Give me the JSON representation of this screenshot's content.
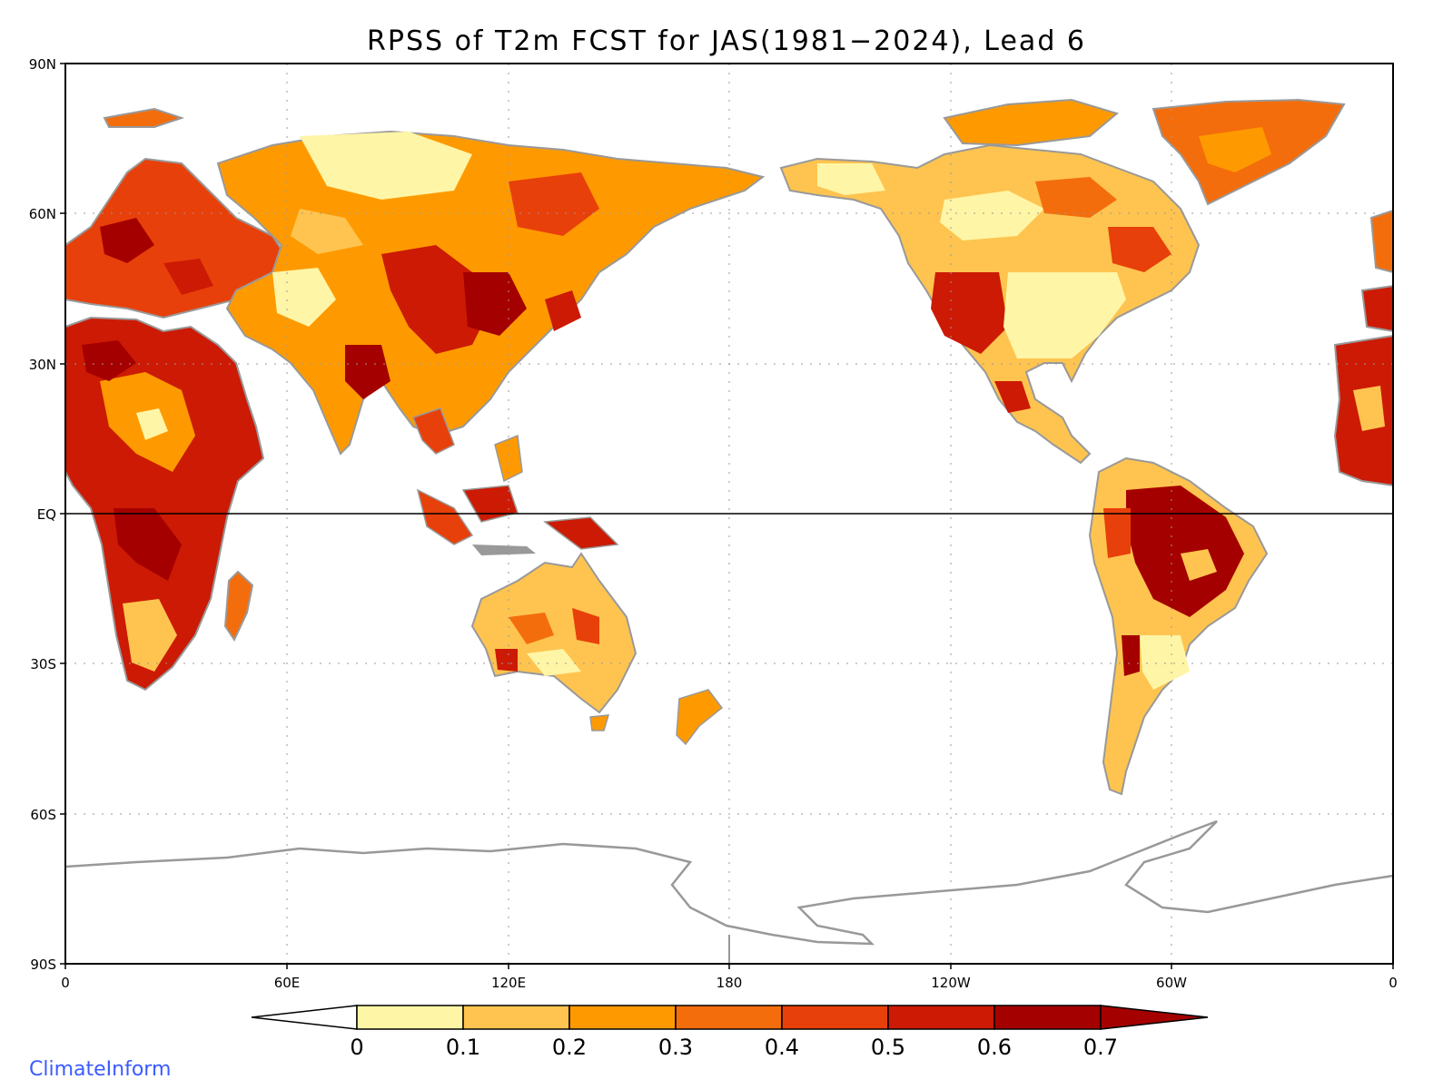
{
  "title": "RPSS of T2m FCST for JAS(1981−2024), Lead 6",
  "brand": "ClimateInform",
  "lat_labels": [
    "90N",
    "60N",
    "30N",
    "EQ",
    "30S",
    "60S",
    "90S"
  ],
  "lon_labels": [
    "0",
    "60E",
    "120E",
    "180",
    "120W",
    "60W",
    "0"
  ],
  "colorbar": {
    "ticks": [
      "0",
      "0.1",
      "0.2",
      "0.3",
      "0.4",
      "0.5",
      "0.6",
      "0.7"
    ],
    "colors": [
      "#ffffff",
      "#fff5a6",
      "#fec44f",
      "#fe9a00",
      "#f46d0c",
      "#e8400a",
      "#cc1a04",
      "#a50000",
      "#a50000"
    ],
    "extend": "both"
  },
  "map": {
    "projection": "cylindrical equidistant, centered on 180",
    "lat_range": [
      -90,
      90
    ],
    "lon_range": [
      0,
      360
    ],
    "grid": "dotted every 60 degrees longitude and 30 degrees latitude",
    "land_colors": {
      "ocean": "#ffffff",
      "coastline": "#999999",
      "boundaries": "#000000"
    }
  }
}
